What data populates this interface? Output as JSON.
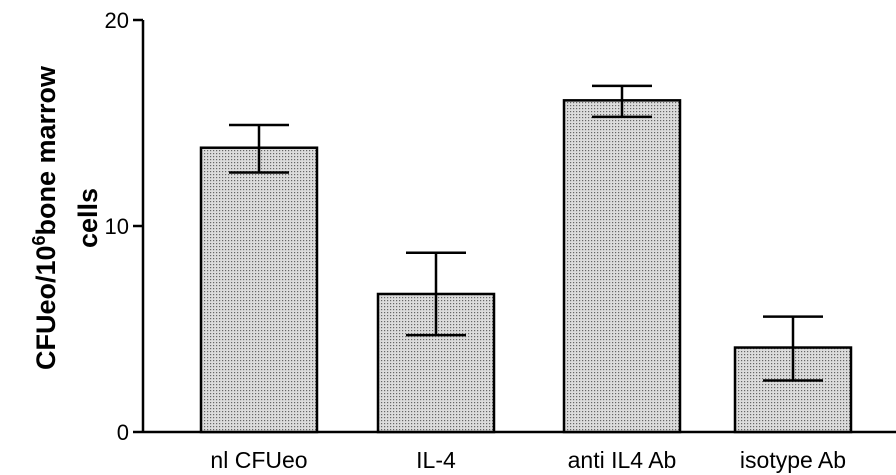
{
  "chart_data": {
    "type": "bar",
    "categories": [
      "nl CFUeo",
      "IL-4",
      "anti IL4 Ab",
      "isotype Ab"
    ],
    "values": [
      13.8,
      6.7,
      16.1,
      4.1
    ],
    "error_low": [
      12.6,
      4.7,
      15.3,
      2.5
    ],
    "error_high": [
      14.9,
      8.7,
      16.8,
      5.6
    ],
    "ylabel_parts": {
      "main": "CFUeo/10",
      "sup": "6",
      "rest": "bone marrow",
      "line2": "cells"
    },
    "xlabel": "",
    "title": "",
    "ylim": [
      0,
      20
    ],
    "yticks": [
      0,
      10,
      20
    ],
    "grid": false,
    "bar_fill": "#dcdcdc",
    "bar_dot": "#666666"
  }
}
